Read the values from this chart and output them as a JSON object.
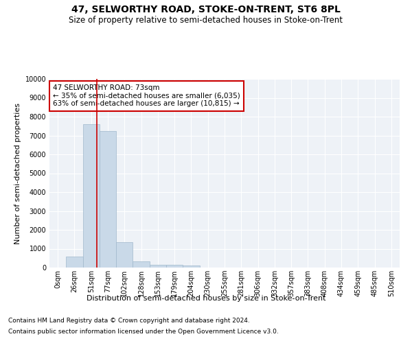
{
  "title": "47, SELWORTHY ROAD, STOKE-ON-TRENT, ST6 8PL",
  "subtitle": "Size of property relative to semi-detached houses in Stoke-on-Trent",
  "xlabel": "Distribution of semi-detached houses by size in Stoke-on-Trent",
  "ylabel": "Number of semi-detached properties",
  "footnote1": "Contains HM Land Registry data © Crown copyright and database right 2024.",
  "footnote2": "Contains public sector information licensed under the Open Government Licence v3.0.",
  "bar_labels": [
    "0sqm",
    "26sqm",
    "51sqm",
    "77sqm",
    "102sqm",
    "128sqm",
    "153sqm",
    "179sqm",
    "204sqm",
    "230sqm",
    "255sqm",
    "281sqm",
    "306sqm",
    "332sqm",
    "357sqm",
    "383sqm",
    "408sqm",
    "434sqm",
    "459sqm",
    "485sqm",
    "510sqm"
  ],
  "bar_values": [
    0,
    580,
    7600,
    7250,
    1350,
    320,
    160,
    130,
    110,
    0,
    0,
    0,
    0,
    0,
    0,
    0,
    0,
    0,
    0,
    0,
    0
  ],
  "bar_color": "#c9d9e8",
  "bar_edge_color": "#a0b8cc",
  "annotation_text": "47 SELWORTHY ROAD: 73sqm\n← 35% of semi-detached houses are smaller (6,035)\n63% of semi-detached houses are larger (10,815) →",
  "annotation_box_color": "#ffffff",
  "annotation_box_edge": "#cc0000",
  "vline_color": "#cc0000",
  "ylim": [
    0,
    10000
  ],
  "bg_color": "#eef2f7",
  "grid_color": "#ffffff",
  "title_fontsize": 10,
  "subtitle_fontsize": 8.5,
  "axis_label_fontsize": 8,
  "tick_fontsize": 7,
  "annotation_fontsize": 7.5,
  "footnote_fontsize": 6.5
}
